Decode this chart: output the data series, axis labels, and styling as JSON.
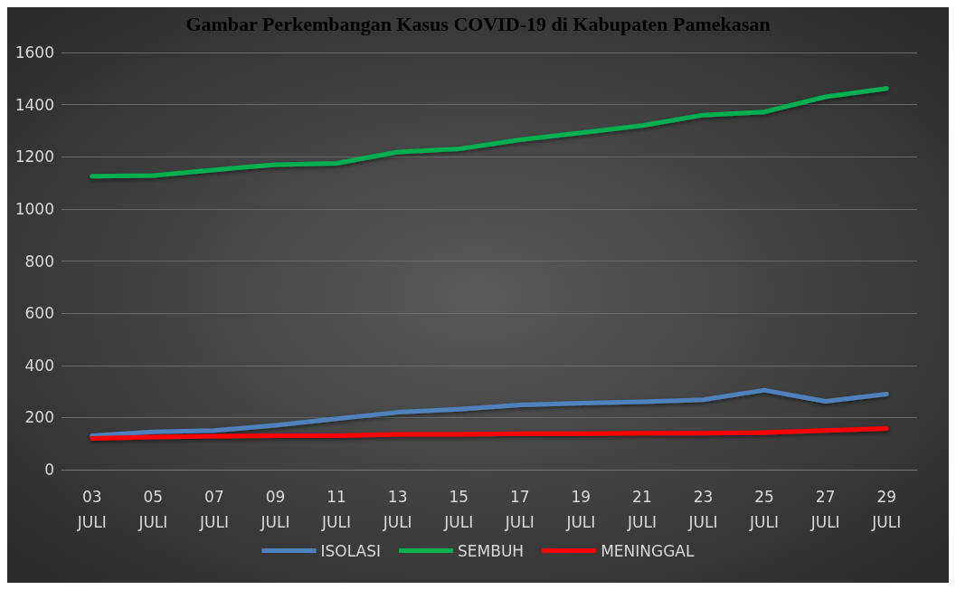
{
  "chart_data": {
    "type": "line",
    "title": "Gambar Perkembangan Kasus COVID-19 di Kabupaten Pamekasan",
    "categories": [
      "03\nJULI",
      "05\nJULI",
      "07\nJULI",
      "09\nJULI",
      "11\nJULI",
      "13\nJULI",
      "15\nJULI",
      "17\nJULI",
      "19\nJULI",
      "21\nJULI",
      "23\nJULI",
      "25\nJULI",
      "27\nJULI",
      "29\nJULI"
    ],
    "series": [
      {
        "name": "ISOLASI",
        "color": "#4f81bd",
        "values": [
          130,
          145,
          150,
          170,
          195,
          220,
          232,
          248,
          255,
          260,
          268,
          305,
          262,
          290
        ]
      },
      {
        "name": "SEMBUH",
        "color": "#00b050",
        "values": [
          1125,
          1128,
          1150,
          1170,
          1175,
          1218,
          1230,
          1265,
          1292,
          1320,
          1360,
          1372,
          1430,
          1462
        ]
      },
      {
        "name": "MENINGGAL",
        "color": "#ff0000",
        "values": [
          120,
          125,
          128,
          130,
          130,
          135,
          135,
          138,
          138,
          140,
          140,
          142,
          150,
          158
        ]
      }
    ],
    "ylim": [
      0,
      1600
    ],
    "yticks": [
      0,
      200,
      400,
      600,
      800,
      1000,
      1200,
      1400,
      1600
    ],
    "grid": "y",
    "legend": "bottom",
    "marker": "none",
    "line_style": "solid"
  }
}
